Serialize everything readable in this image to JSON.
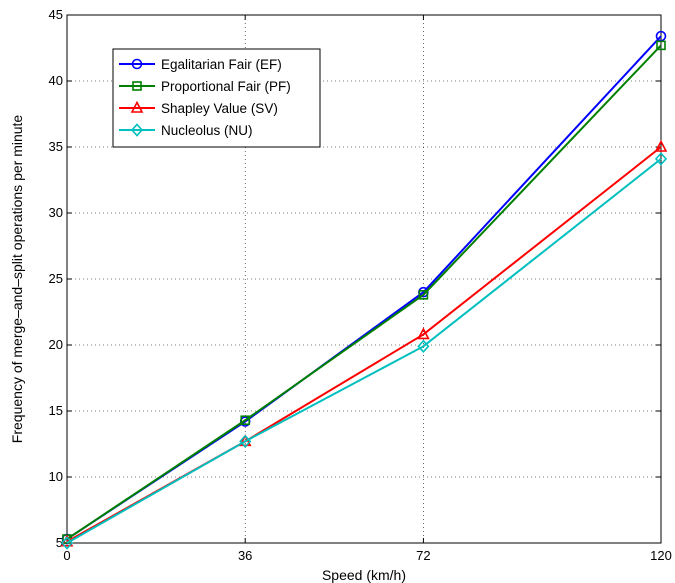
{
  "chart_data": {
    "type": "line",
    "title": "",
    "xlabel": "Speed (km/h)",
    "ylabel": "Frequency of merge–and–split operations per minute",
    "x": [
      0,
      36,
      72,
      120
    ],
    "xticks": [
      0,
      36,
      72,
      120
    ],
    "yticks": [
      5,
      10,
      15,
      20,
      25,
      30,
      35,
      40,
      45
    ],
    "xlim": [
      0,
      120
    ],
    "ylim": [
      5,
      45
    ],
    "grid": true,
    "legend_position": "top-left",
    "series": [
      {
        "name": "Egalitarian Fair (EF)",
        "color": "#0000ff",
        "marker": "circle",
        "values": [
          5.3,
          14.2,
          24.0,
          43.4
        ]
      },
      {
        "name": "Proportional Fair (PF)",
        "color": "#008000",
        "marker": "square",
        "values": [
          5.3,
          14.3,
          23.8,
          42.7
        ]
      },
      {
        "name": "Shapley Value (SV)",
        "color": "#ff0000",
        "marker": "triangle",
        "values": [
          5.1,
          12.7,
          20.8,
          35.0
        ]
      },
      {
        "name": "Nucleolus (NU)",
        "color": "#00bfbf",
        "marker": "diamond",
        "values": [
          5.0,
          12.7,
          19.9,
          34.1
        ]
      }
    ]
  }
}
